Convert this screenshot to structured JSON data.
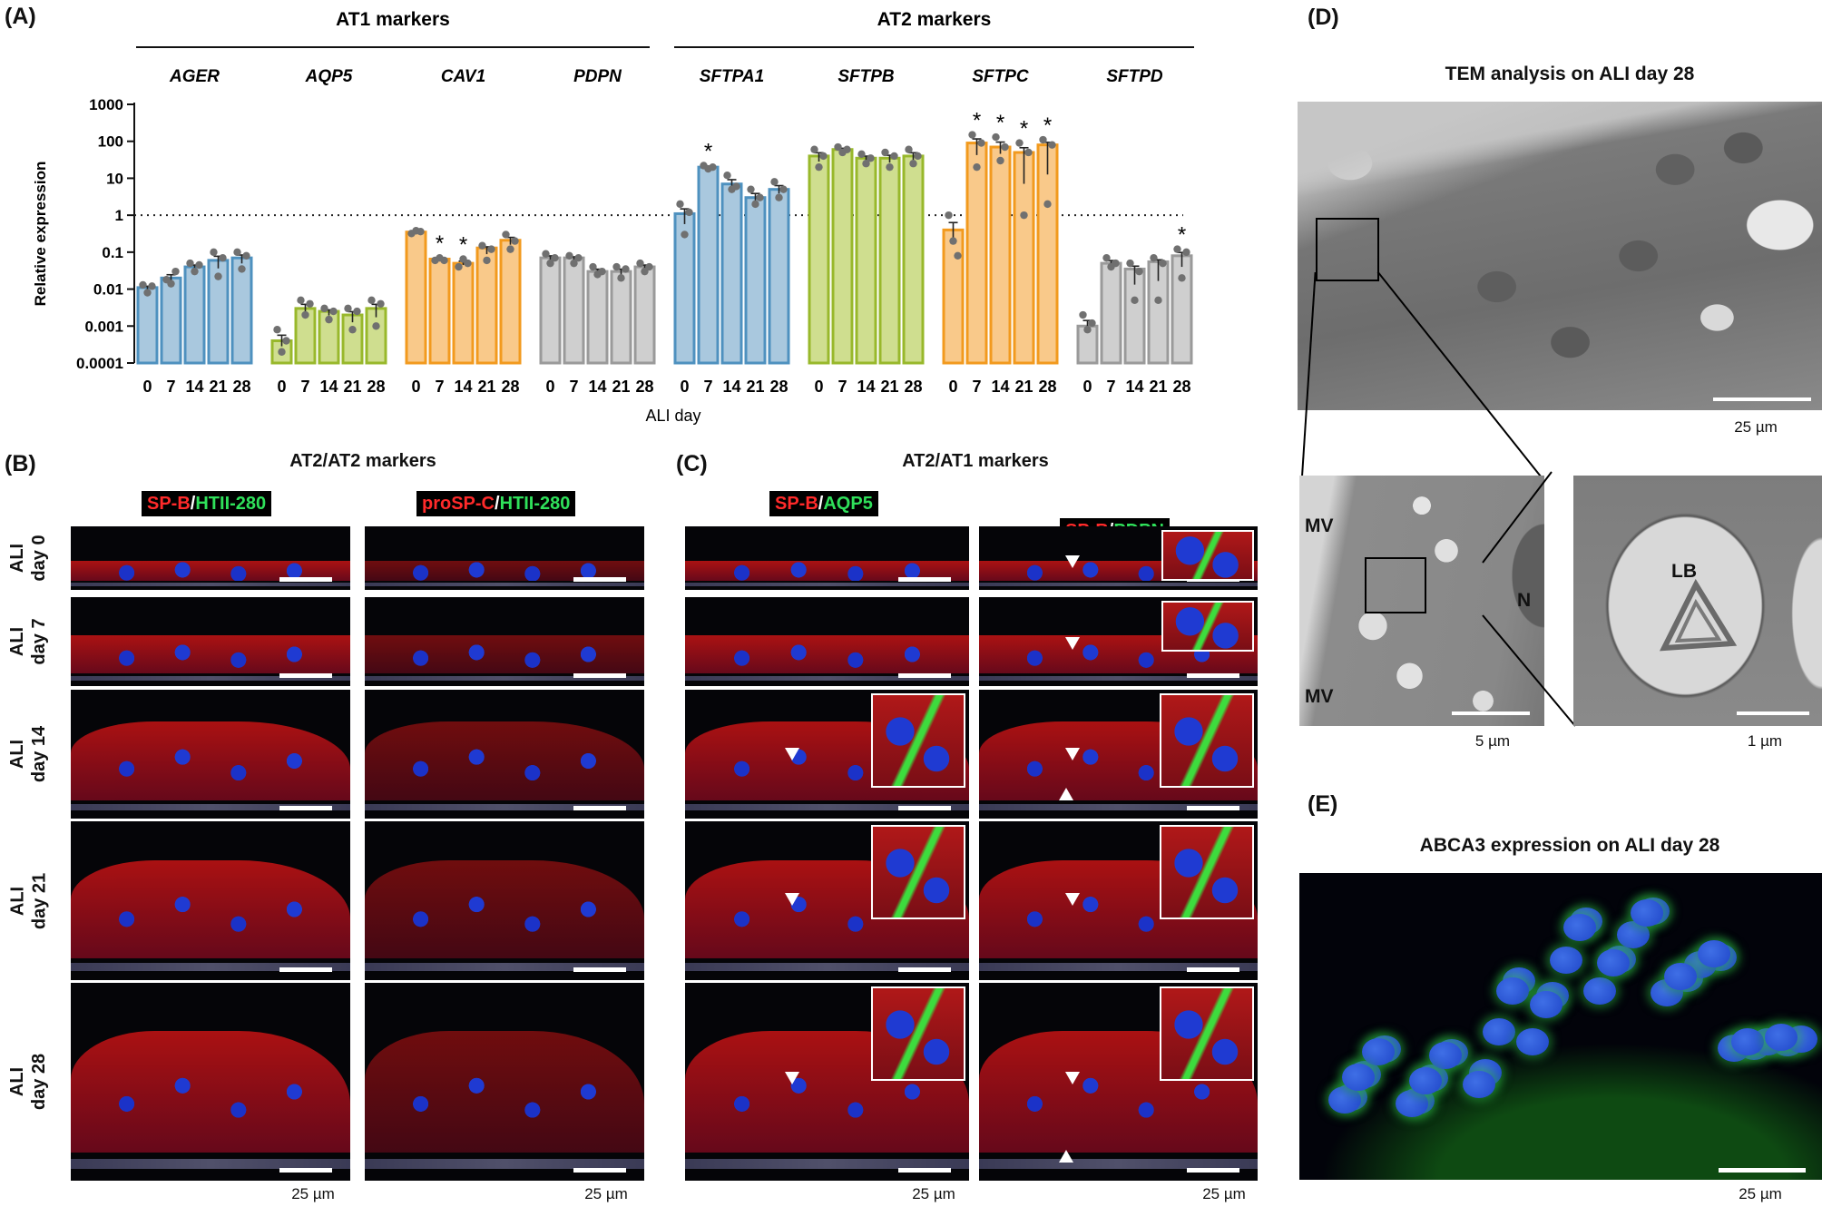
{
  "panel_A": {
    "label": "(A)",
    "group_labels": [
      "AT1 markers",
      "AT2 markers"
    ],
    "x_axis_title": "ALI day",
    "y_axis_title": "Relative expression"
  },
  "chart_data": {
    "type": "bar",
    "y_scale": "log",
    "ylim": [
      0.0001,
      1000
    ],
    "y_ticks": [
      "1000",
      "100",
      "10",
      "1",
      "0.1",
      "0.01",
      "0.001",
      "0.0001"
    ],
    "reference_line": 1,
    "categories": [
      "0",
      "7",
      "14",
      "21",
      "28"
    ],
    "xlabel": "ALI day",
    "ylabel": "Relative expression",
    "series": [
      {
        "name": "AGER",
        "group": "AT1 markers",
        "color": "#4e91bf",
        "fill": "#a9c8de",
        "values": [
          0.011,
          0.02,
          0.04,
          0.06,
          0.07
        ],
        "points": [
          [
            0.013,
            0.008,
            0.012
          ],
          [
            0.018,
            0.014,
            0.03
          ],
          [
            0.05,
            0.03,
            0.045
          ],
          [
            0.1,
            0.022,
            0.07
          ],
          [
            0.1,
            0.035,
            0.08
          ]
        ],
        "sig": [
          false,
          false,
          false,
          false,
          false
        ]
      },
      {
        "name": "AQP5",
        "group": "AT1 markers",
        "color": "#98b82b",
        "fill": "#cfde8f",
        "values": [
          0.0004,
          0.003,
          0.0025,
          0.002,
          0.003
        ],
        "points": [
          [
            0.0008,
            0.0002,
            0.0004
          ],
          [
            0.005,
            0.002,
            0.004
          ],
          [
            0.003,
            0.0015,
            0.0025
          ],
          [
            0.003,
            0.0008,
            0.0025
          ],
          [
            0.005,
            0.001,
            0.004
          ]
        ],
        "sig": [
          false,
          false,
          false,
          false,
          false
        ]
      },
      {
        "name": "CAV1",
        "group": "AT1 markers",
        "color": "#f29a1e",
        "fill": "#f9c98a",
        "values": [
          0.35,
          0.065,
          0.05,
          0.13,
          0.21
        ],
        "points": [
          [
            0.32,
            0.38,
            0.36
          ],
          [
            0.06,
            0.07,
            0.06
          ],
          [
            0.04,
            0.065,
            0.05
          ],
          [
            0.15,
            0.06,
            0.12
          ],
          [
            0.3,
            0.12,
            0.2
          ]
        ],
        "sig": [
          false,
          true,
          true,
          false,
          false
        ]
      },
      {
        "name": "PDPN",
        "group": "AT1 markers",
        "color": "#9a9a9a",
        "fill": "#cfcfcf",
        "values": [
          0.07,
          0.07,
          0.03,
          0.03,
          0.04
        ],
        "points": [
          [
            0.09,
            0.05,
            0.07
          ],
          [
            0.08,
            0.05,
            0.07
          ],
          [
            0.04,
            0.025,
            0.03
          ],
          [
            0.04,
            0.02,
            0.035
          ],
          [
            0.05,
            0.03,
            0.04
          ]
        ],
        "sig": [
          false,
          false,
          false,
          false,
          false
        ]
      },
      {
        "name": "SFTPA1",
        "group": "AT2 markers",
        "color": "#4e91bf",
        "fill": "#a9c8de",
        "values": [
          1.1,
          20,
          7,
          3,
          5
        ],
        "points": [
          [
            2,
            0.3,
            1.2
          ],
          [
            22,
            18,
            20
          ],
          [
            12,
            5,
            6
          ],
          [
            5,
            2,
            3
          ],
          [
            8,
            3,
            5
          ]
        ],
        "sig": [
          false,
          true,
          false,
          false,
          false
        ]
      },
      {
        "name": "SFTPB",
        "group": "AT2 markers",
        "color": "#98b82b",
        "fill": "#cfde8f",
        "values": [
          40,
          60,
          35,
          35,
          40
        ],
        "points": [
          [
            60,
            20,
            40
          ],
          [
            70,
            50,
            60
          ],
          [
            45,
            25,
            35
          ],
          [
            50,
            20,
            40
          ],
          [
            60,
            25,
            40
          ]
        ],
        "sig": [
          false,
          false,
          false,
          false,
          false
        ]
      },
      {
        "name": "SFTPC",
        "group": "AT2 markers",
        "color": "#f29a1e",
        "fill": "#f9c98a",
        "values": [
          0.4,
          90,
          70,
          50,
          80
        ],
        "points": [
          [
            1,
            0.2,
            0.08
          ],
          [
            150,
            20,
            90
          ],
          [
            130,
            30,
            70
          ],
          [
            90,
            1,
            50
          ],
          [
            110,
            2,
            80
          ]
        ],
        "sig": [
          false,
          true,
          true,
          true,
          true
        ]
      },
      {
        "name": "SFTPD",
        "group": "AT2 markers",
        "color": "#9a9a9a",
        "fill": "#cfcfcf",
        "values": [
          0.001,
          0.05,
          0.035,
          0.055,
          0.08
        ],
        "points": [
          [
            0.002,
            0.0008,
            0.0012
          ],
          [
            0.07,
            0.04,
            0.05
          ],
          [
            0.05,
            0.005,
            0.03
          ],
          [
            0.07,
            0.005,
            0.05
          ],
          [
            0.12,
            0.02,
            0.1
          ]
        ],
        "sig": [
          false,
          false,
          false,
          false,
          true
        ]
      }
    ]
  },
  "panel_B": {
    "label": "(B)",
    "title": "AT2/AT2 markers",
    "col1": {
      "a": "SP-B",
      "sep": "/",
      "b": "HTII-280"
    },
    "col2": {
      "a": "proSP-C",
      "sep": "/",
      "b": "HTII-280"
    },
    "scale": "25 µm"
  },
  "panel_C": {
    "label": "(C)",
    "title": "AT2/AT1 markers",
    "col1": {
      "a": "SP-B",
      "sep": "/",
      "b": "AQP5"
    },
    "col2": {
      "a": "SP-B",
      "sep": "/",
      "b": "PDPN"
    },
    "scale": "25 µm"
  },
  "rows": [
    {
      "line1": "ALI",
      "line2": "day 0"
    },
    {
      "line1": "ALI",
      "line2": "day 7"
    },
    {
      "line1": "ALI",
      "line2": "day 14"
    },
    {
      "line1": "ALI",
      "line2": "day 21"
    },
    {
      "line1": "ALI",
      "line2": "day 28"
    }
  ],
  "panel_D": {
    "label": "(D)",
    "title": "TEM analysis on ALI day 28",
    "scale_top": "25 µm",
    "scale_mid": "5 µm",
    "scale_right": "1 µm",
    "mv1": "MV",
    "mv2": "MV",
    "n": "N",
    "lb": "LB"
  },
  "panel_E": {
    "label": "(E)",
    "title": "ABCA3 expression on ALI day 28",
    "scale": "25 µm"
  }
}
